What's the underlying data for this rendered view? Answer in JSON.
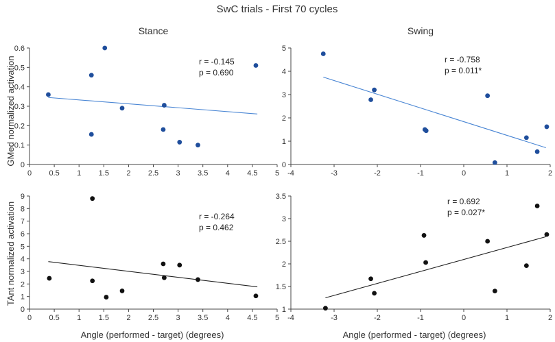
{
  "figure": {
    "title": "SwC trials - First 70 cycles",
    "ylabel_top": "GMed normalized activation",
    "ylabel_bottom": "TAnt normalized activation",
    "xlabel": "Angle (performed - target) (degrees)"
  },
  "chart_data": [
    {
      "id": "top-left",
      "type": "scatter",
      "title": "Stance",
      "xlim": [
        0,
        5
      ],
      "ylim": [
        0,
        0.6
      ],
      "xticks": [
        0,
        0.5,
        1,
        1.5,
        2,
        2.5,
        3,
        3.5,
        4,
        4.5,
        5
      ],
      "xtick_labels": [
        "0",
        "0.5",
        "1",
        "1.5",
        "2",
        "2.5",
        "3",
        "3.5",
        "4",
        "4.5",
        "5"
      ],
      "yticks": [
        0,
        0.1,
        0.2,
        0.3,
        0.4,
        0.5,
        0.6
      ],
      "ytick_labels": [
        "0",
        "0.1",
        "0.2",
        "0.3",
        "0.4",
        "0.5",
        "0.6"
      ],
      "points": [
        [
          0.38,
          0.36
        ],
        [
          1.25,
          0.46
        ],
        [
          1.25,
          0.155
        ],
        [
          1.52,
          0.6
        ],
        [
          1.87,
          0.29
        ],
        [
          2.72,
          0.305
        ],
        [
          2.7,
          0.18
        ],
        [
          3.03,
          0.115
        ],
        [
          3.4,
          0.1
        ],
        [
          4.57,
          0.51
        ]
      ],
      "fit": [
        [
          0.38,
          0.345
        ],
        [
          4.6,
          0.26
        ]
      ],
      "point_color": "#1f4e9c",
      "line_color": "#4a86d4",
      "annotation": [
        "r = -0.145",
        "p = 0.690"
      ]
    },
    {
      "id": "top-right",
      "type": "scatter",
      "title": "Swing",
      "xlim": [
        -4,
        2
      ],
      "ylim": [
        0,
        5
      ],
      "xticks": [
        -4,
        -3,
        -2,
        -1,
        0,
        1,
        2
      ],
      "xtick_labels": [
        "-4",
        "-3",
        "-2",
        "-1",
        "0",
        "1",
        "2"
      ],
      "yticks": [
        0,
        1,
        2,
        3,
        4,
        5
      ],
      "ytick_labels": [
        "0",
        "1",
        "2",
        "3",
        "4",
        "5"
      ],
      "points": [
        [
          -3.25,
          4.75
        ],
        [
          -2.15,
          2.78
        ],
        [
          -2.07,
          3.2
        ],
        [
          -0.9,
          1.5
        ],
        [
          -0.87,
          1.45
        ],
        [
          0.55,
          2.95
        ],
        [
          0.72,
          0.08
        ],
        [
          1.45,
          1.15
        ],
        [
          1.7,
          0.55
        ],
        [
          1.92,
          1.62
        ]
      ],
      "fit": [
        [
          -3.25,
          3.75
        ],
        [
          1.9,
          0.72
        ]
      ],
      "point_color": "#1f4e9c",
      "line_color": "#4a86d4",
      "annotation": [
        "r = -0.758",
        "p = 0.011*"
      ]
    },
    {
      "id": "bottom-left",
      "type": "scatter",
      "title": "",
      "xlim": [
        0,
        5
      ],
      "ylim": [
        0,
        9
      ],
      "xticks": [
        0,
        0.5,
        1,
        1.5,
        2,
        2.5,
        3,
        3.5,
        4,
        4.5,
        5
      ],
      "xtick_labels": [
        "0",
        "0.5",
        "1",
        "1.5",
        "2",
        "2.5",
        "3",
        "3.5",
        "4",
        "4.5",
        "5"
      ],
      "yticks": [
        0,
        1,
        2,
        3,
        4,
        5,
        6,
        7,
        8,
        9
      ],
      "ytick_labels": [
        "0",
        "1",
        "2",
        "3",
        "4",
        "5",
        "6",
        "7",
        "8",
        "9"
      ],
      "points": [
        [
          0.4,
          2.45
        ],
        [
          1.27,
          8.8
        ],
        [
          1.27,
          2.25
        ],
        [
          1.55,
          0.95
        ],
        [
          1.87,
          1.45
        ],
        [
          2.7,
          3.6
        ],
        [
          2.72,
          2.5
        ],
        [
          3.03,
          3.5
        ],
        [
          3.4,
          2.35
        ],
        [
          4.57,
          1.05
        ]
      ],
      "fit": [
        [
          0.38,
          3.78
        ],
        [
          4.6,
          1.77
        ]
      ],
      "point_color": "#111111",
      "line_color": "#222222",
      "annotation": [
        "r = -0.264",
        "p = 0.462"
      ]
    },
    {
      "id": "bottom-right",
      "type": "scatter",
      "title": "",
      "xlim": [
        -4,
        2
      ],
      "ylim": [
        1,
        3.5
      ],
      "xticks": [
        -4,
        -3,
        -2,
        -1,
        0,
        1,
        2
      ],
      "xtick_labels": [
        "-4",
        "-3",
        "-2",
        "-1",
        "0",
        "1",
        "2"
      ],
      "yticks": [
        1,
        1.5,
        2,
        2.5,
        3,
        3.5
      ],
      "ytick_labels": [
        "1",
        "1.5",
        "2",
        "2.5",
        "3",
        "3.5"
      ],
      "points": [
        [
          -3.2,
          1.02
        ],
        [
          -2.15,
          1.67
        ],
        [
          -2.07,
          1.35
        ],
        [
          -0.92,
          2.63
        ],
        [
          -0.88,
          2.03
        ],
        [
          0.55,
          2.5
        ],
        [
          0.72,
          1.4
        ],
        [
          1.45,
          1.96
        ],
        [
          1.7,
          3.28
        ],
        [
          1.92,
          2.65
        ]
      ],
      "fit": [
        [
          -3.2,
          1.25
        ],
        [
          1.9,
          2.6
        ]
      ],
      "point_color": "#111111",
      "line_color": "#222222",
      "annotation": [
        "r = 0.692",
        "p = 0.027*"
      ]
    }
  ]
}
